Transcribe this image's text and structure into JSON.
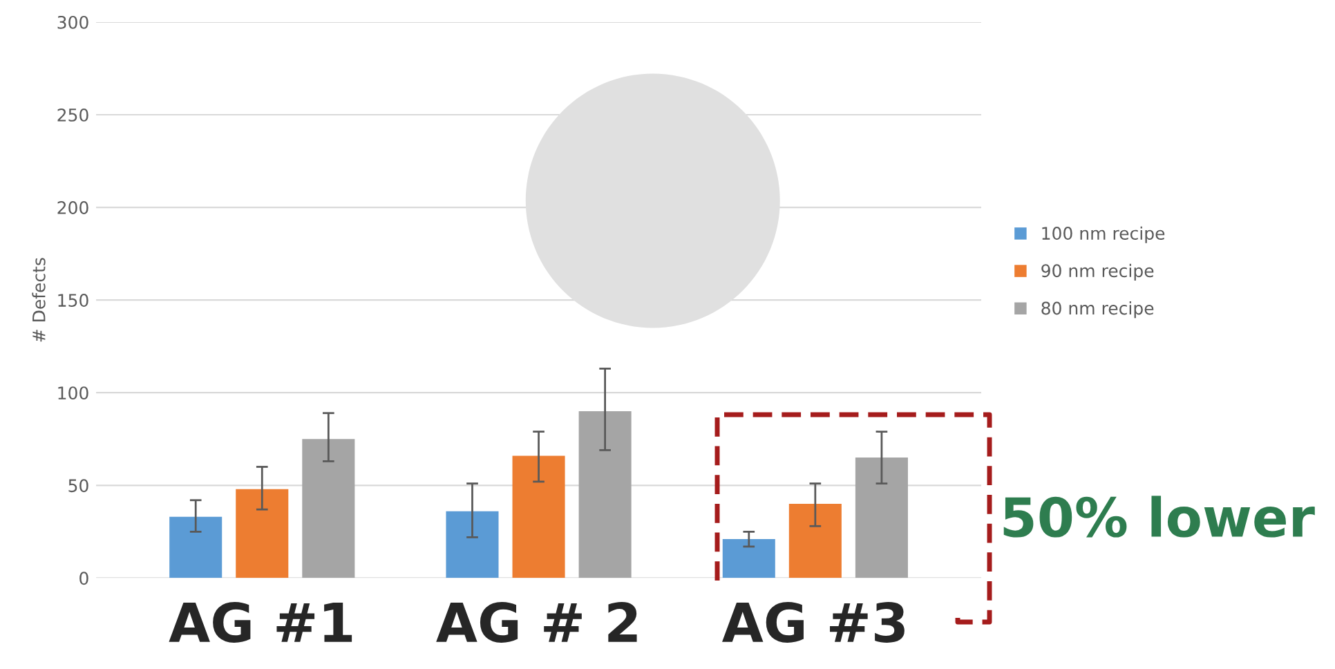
{
  "chart_data": {
    "type": "bar",
    "ylabel": "# Defects",
    "categories": [
      "AG #1",
      "AG # 2",
      "AG #3"
    ],
    "series": [
      {
        "name": "100 nm recipe",
        "color": "#5b9bd5",
        "values": [
          33,
          36,
          21
        ],
        "errors": [
          [
            25,
            42
          ],
          [
            22,
            51
          ],
          [
            17,
            25
          ]
        ]
      },
      {
        "name": "90 nm recipe",
        "color": "#ed7d31",
        "values": [
          48,
          66,
          40
        ],
        "errors": [
          [
            37,
            60
          ],
          [
            52,
            79
          ],
          [
            28,
            51
          ]
        ]
      },
      {
        "name": "80 nm recipe",
        "color": "#a5a5a5",
        "values": [
          75,
          90,
          65
        ],
        "errors": [
          [
            63,
            89
          ],
          [
            69,
            113
          ],
          [
            51,
            79
          ]
        ]
      }
    ],
    "ylim": [
      0,
      300
    ],
    "yticks": [
      0,
      50,
      100,
      150,
      200,
      250,
      300
    ],
    "grid": "y",
    "legend": "right",
    "annotations": [
      "50% lower"
    ]
  }
}
